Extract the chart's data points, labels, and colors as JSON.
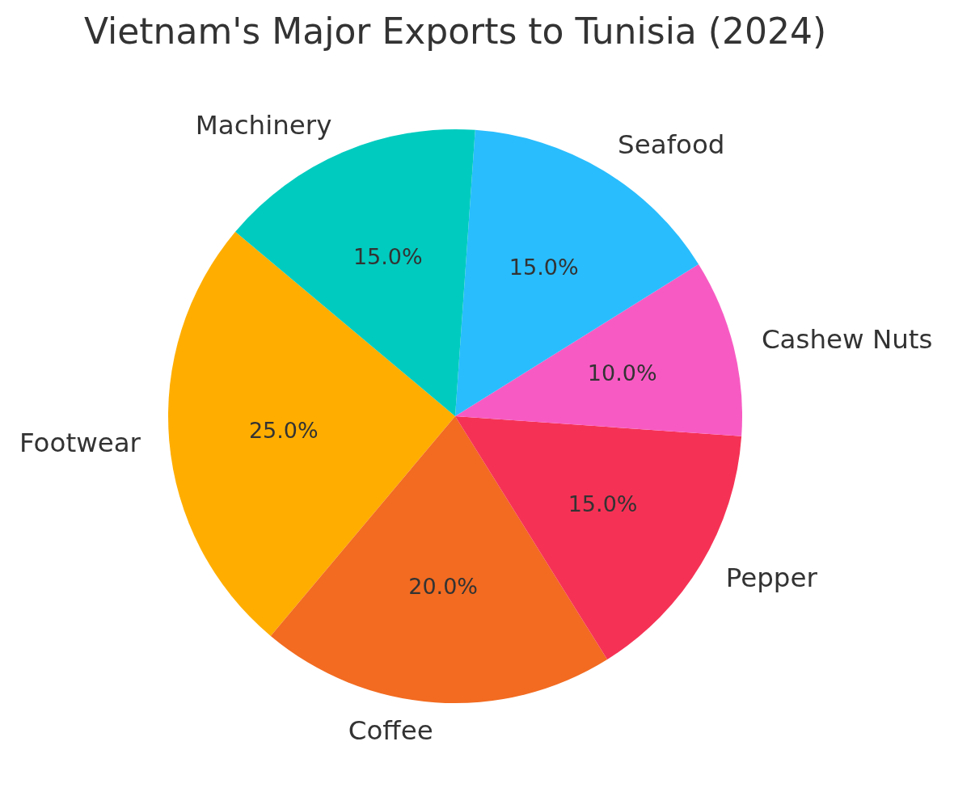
{
  "chart_data": {
    "type": "pie",
    "title": "Vietnam's Major Exports to Tunisia (2024)",
    "categories": [
      "Footwear",
      "Coffee",
      "Pepper",
      "Cashew Nuts",
      "Seafood",
      "Machinery"
    ],
    "values": [
      25.0,
      20.0,
      15.0,
      10.0,
      15.0,
      15.0
    ],
    "value_labels": [
      "25.0%",
      "20.0%",
      "15.0%",
      "10.0%",
      "15.0%",
      "15.0%"
    ],
    "colors": [
      "#ffae00",
      "#f26b21",
      "#f53255",
      "#f75bc3",
      "#29bdfd",
      "#00cbbf"
    ]
  }
}
